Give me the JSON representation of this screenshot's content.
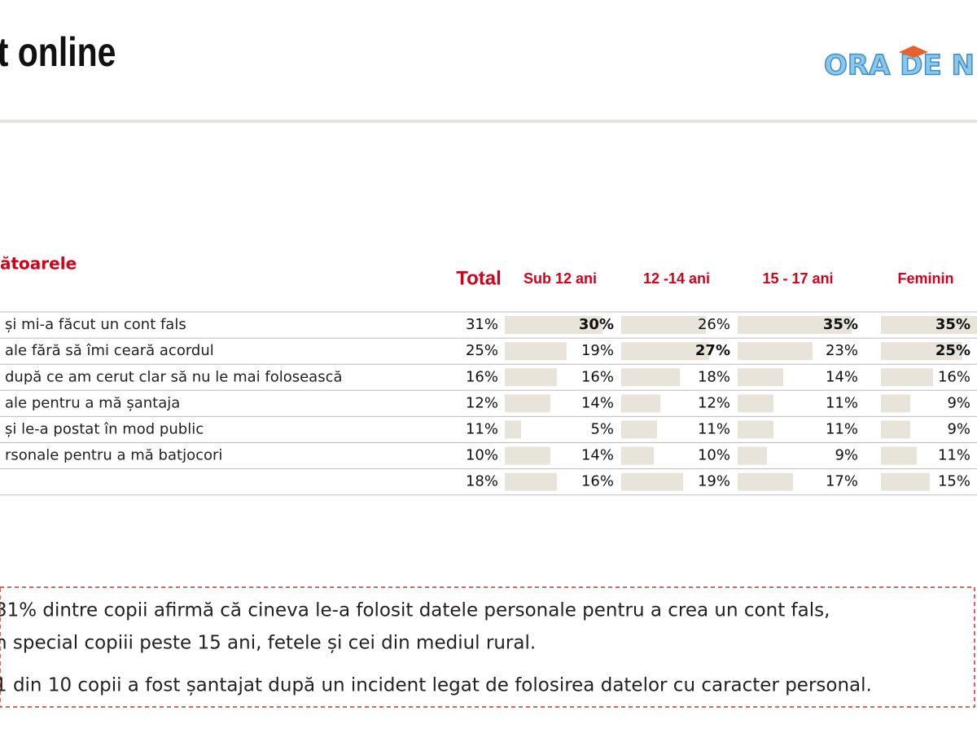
{
  "header": {
    "title": "t online",
    "logo": "ORA DE N"
  },
  "table": {
    "caption": "ătoarele",
    "columns": [
      "Total",
      "Sub 12 ani",
      "12 -14 ani",
      "15 - 17 ani",
      "Feminin"
    ],
    "rows": [
      {
        "label": "și mi-a făcut un cont fals",
        "values": [
          31,
          30,
          26,
          35,
          35
        ],
        "value_labels": [
          "31%",
          "30%",
          "26%",
          "35%",
          "35%"
        ],
        "bold": [
          1,
          3,
          4
        ]
      },
      {
        "label": "ale fără să îmi ceară acordul",
        "values": [
          25,
          19,
          27,
          23,
          25
        ],
        "value_labels": [
          "25%",
          "19%",
          "27%",
          "23%",
          "25%"
        ],
        "bold": [
          2,
          4
        ]
      },
      {
        "label": "după ce am cerut clar să nu le mai folosească",
        "values": [
          16,
          16,
          18,
          14,
          16
        ],
        "value_labels": [
          "16%",
          "16%",
          "18%",
          "14%",
          "16%"
        ],
        "bold": []
      },
      {
        "label": "ale pentru a mă șantaja",
        "values": [
          12,
          14,
          12,
          11,
          9
        ],
        "value_labels": [
          "12%",
          "14%",
          "12%",
          "11%",
          "9%"
        ],
        "bold": []
      },
      {
        "label": "și le-a postat în mod public",
        "values": [
          11,
          5,
          11,
          11,
          9
        ],
        "value_labels": [
          "11%",
          "5%",
          "11%",
          "11%",
          "9%"
        ],
        "bold": []
      },
      {
        "label": "rsonale pentru a mă batjocori",
        "values": [
          10,
          14,
          10,
          9,
          11
        ],
        "value_labels": [
          "10%",
          "14%",
          "10%",
          "9%",
          "11%"
        ],
        "bold": []
      },
      {
        "values": [
          18,
          16,
          19,
          17,
          15
        ],
        "value_labels": [
          "18%",
          "16%",
          "19%",
          "17%",
          "15%"
        ],
        "bold": []
      }
    ]
  },
  "callout": {
    "lines": [
      "31% dintre copii afirmă că cineva le-a folosit datele personale pentru a crea un cont fals,",
      "n special copiii peste 15 ani, fetele și cei din mediul rural.",
      "1 din 10 copii a fost șantajat după un incident legat de folosirea datelor cu caracter personal."
    ]
  }
}
